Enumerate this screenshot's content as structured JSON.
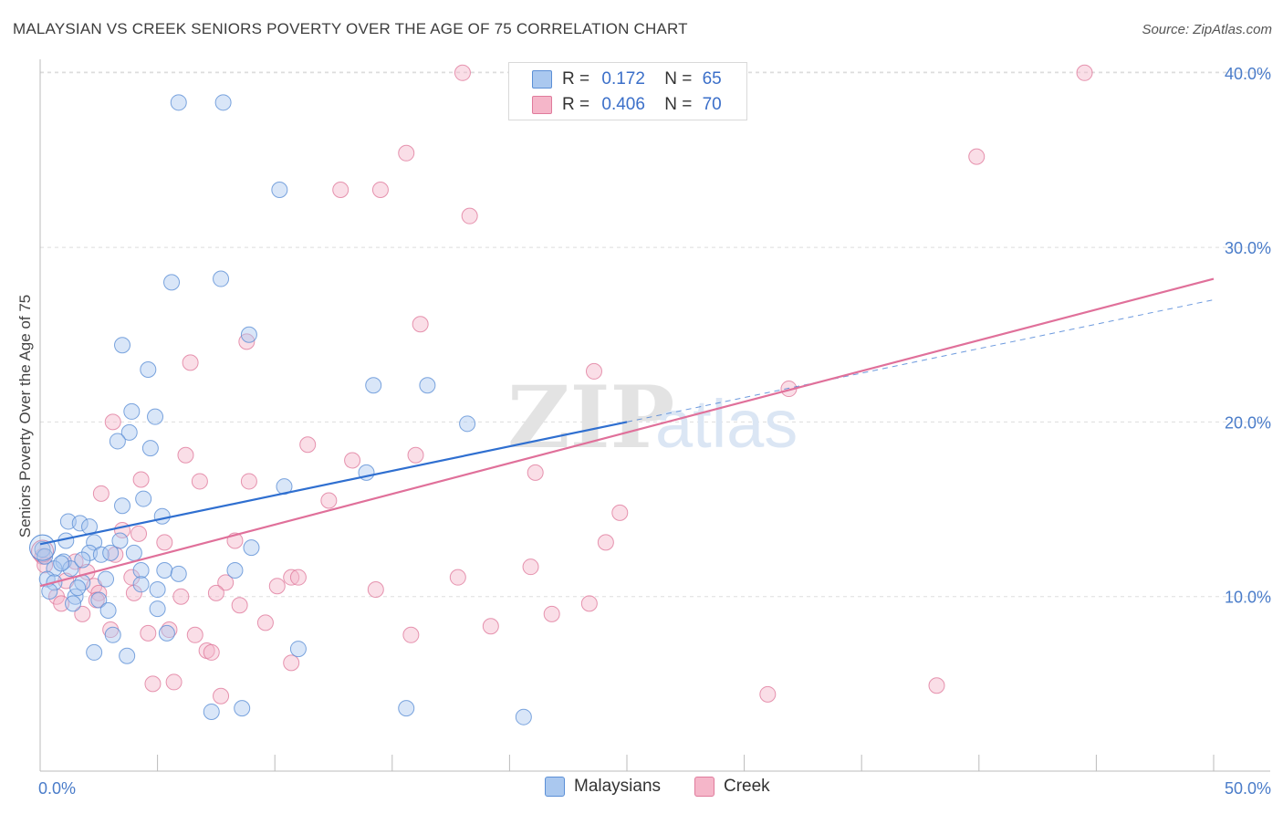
{
  "title": "MALAYSIAN VS CREEK SENIORS POVERTY OVER THE AGE OF 75 CORRELATION CHART",
  "source": "Source: ZipAtlas.com",
  "watermark": {
    "zip": "ZIP",
    "atlas": "atlas"
  },
  "stats": {
    "malaysians": {
      "r_label": "R =",
      "r_value": "0.172",
      "n_label": "N =",
      "n_value": "65"
    },
    "creek": {
      "r_label": "R =",
      "r_value": "0.406",
      "n_label": "N =",
      "n_value": "70"
    }
  },
  "legend": {
    "malaysians": "Malaysians",
    "creek": "Creek"
  },
  "colors": {
    "malaysians_fill": "#aac8ef",
    "malaysians_stroke": "#5b8fd6",
    "malaysians_line": "#2f6fd0",
    "creek_fill": "#f5b6c9",
    "creek_stroke": "#e07b9c",
    "creek_line": "#e0709a",
    "tick": "#4a7cc9",
    "grid": "#dddddd"
  },
  "chart_data": {
    "type": "scatter",
    "title": "MALAYSIAN VS CREEK SENIORS POVERTY OVER THE AGE OF 75 CORRELATION CHART",
    "xlabel": "",
    "ylabel": "Seniors Poverty Over the Age of 75",
    "xlim": [
      0,
      50
    ],
    "ylim": [
      0,
      42
    ],
    "x_tick_labels": [
      "0.0%",
      "50.0%"
    ],
    "y_ticks": [
      10,
      20,
      30,
      40
    ],
    "y_tick_labels": [
      "10.0%",
      "20.0%",
      "30.0%",
      "40.0%"
    ],
    "series": [
      {
        "name": "Malaysians",
        "r": 0.172,
        "n": 65,
        "trend": {
          "x": [
            0,
            25
          ],
          "y": [
            13.0,
            20.0
          ]
        },
        "trend_extension": {
          "x": [
            25,
            50
          ],
          "y": [
            20.0,
            27.0
          ]
        },
        "points": [
          [
            5.9,
            38.3
          ],
          [
            7.8,
            38.3
          ],
          [
            10.2,
            33.3
          ],
          [
            5.6,
            28.0
          ],
          [
            7.7,
            28.2
          ],
          [
            3.5,
            24.4
          ],
          [
            8.9,
            25.0
          ],
          [
            4.6,
            23.0
          ],
          [
            14.2,
            22.1
          ],
          [
            16.5,
            22.1
          ],
          [
            3.9,
            20.6
          ],
          [
            4.9,
            20.3
          ],
          [
            18.2,
            19.9
          ],
          [
            3.8,
            19.4
          ],
          [
            3.3,
            18.9
          ],
          [
            4.7,
            18.5
          ],
          [
            13.9,
            17.1
          ],
          [
            10.4,
            16.3
          ],
          [
            4.4,
            15.6
          ],
          [
            3.5,
            15.2
          ],
          [
            5.2,
            14.6
          ],
          [
            1.2,
            14.3
          ],
          [
            1.7,
            14.2
          ],
          [
            2.1,
            14.0
          ],
          [
            0.1,
            12.7
          ],
          [
            2.3,
            13.1
          ],
          [
            3.4,
            13.2
          ],
          [
            2.1,
            12.5
          ],
          [
            2.6,
            12.4
          ],
          [
            3.0,
            12.5
          ],
          [
            4.0,
            12.5
          ],
          [
            1.0,
            12.0
          ],
          [
            0.6,
            11.6
          ],
          [
            1.3,
            11.6
          ],
          [
            4.3,
            11.5
          ],
          [
            5.3,
            11.5
          ],
          [
            5.9,
            11.3
          ],
          [
            8.3,
            11.5
          ],
          [
            9.0,
            12.8
          ],
          [
            0.3,
            11.0
          ],
          [
            0.6,
            10.8
          ],
          [
            1.8,
            10.8
          ],
          [
            2.8,
            11.0
          ],
          [
            4.3,
            10.7
          ],
          [
            0.4,
            10.3
          ],
          [
            1.5,
            10.0
          ],
          [
            1.6,
            10.5
          ],
          [
            2.5,
            9.8
          ],
          [
            1.4,
            9.6
          ],
          [
            2.9,
            9.2
          ],
          [
            5.0,
            9.3
          ],
          [
            5.0,
            10.4
          ],
          [
            3.1,
            7.8
          ],
          [
            5.4,
            7.9
          ],
          [
            2.3,
            6.8
          ],
          [
            3.7,
            6.6
          ],
          [
            11.0,
            7.0
          ],
          [
            7.3,
            3.4
          ],
          [
            8.6,
            3.6
          ],
          [
            15.6,
            3.6
          ],
          [
            20.6,
            3.1
          ],
          [
            0.9,
            11.9
          ],
          [
            1.8,
            12.1
          ],
          [
            0.2,
            12.3
          ],
          [
            1.1,
            13.2
          ]
        ]
      },
      {
        "name": "Creek",
        "r": 0.406,
        "n": 70,
        "trend": {
          "x": [
            0,
            50
          ],
          "y": [
            10.6,
            28.2
          ]
        },
        "points": [
          [
            18.0,
            40.0
          ],
          [
            44.5,
            40.0
          ],
          [
            15.6,
            35.4
          ],
          [
            39.9,
            35.2
          ],
          [
            12.8,
            33.3
          ],
          [
            14.5,
            33.3
          ],
          [
            18.3,
            31.8
          ],
          [
            16.2,
            25.6
          ],
          [
            8.8,
            24.6
          ],
          [
            6.4,
            23.4
          ],
          [
            23.6,
            22.9
          ],
          [
            31.9,
            21.9
          ],
          [
            3.1,
            20.0
          ],
          [
            11.4,
            18.7
          ],
          [
            6.2,
            18.1
          ],
          [
            16.0,
            18.1
          ],
          [
            13.3,
            17.8
          ],
          [
            21.1,
            17.1
          ],
          [
            4.3,
            16.7
          ],
          [
            6.8,
            16.6
          ],
          [
            8.9,
            16.6
          ],
          [
            2.6,
            15.9
          ],
          [
            12.3,
            15.5
          ],
          [
            24.7,
            14.8
          ],
          [
            3.5,
            13.8
          ],
          [
            4.2,
            13.6
          ],
          [
            8.3,
            13.2
          ],
          [
            5.3,
            13.1
          ],
          [
            24.1,
            13.1
          ],
          [
            0.1,
            12.3
          ],
          [
            2.0,
            11.4
          ],
          [
            20.9,
            11.7
          ],
          [
            3.9,
            11.1
          ],
          [
            10.7,
            11.1
          ],
          [
            11.0,
            11.1
          ],
          [
            17.8,
            11.1
          ],
          [
            1.1,
            10.9
          ],
          [
            7.9,
            10.8
          ],
          [
            10.1,
            10.6
          ],
          [
            2.3,
            10.6
          ],
          [
            0.7,
            10.0
          ],
          [
            2.5,
            10.2
          ],
          [
            4.0,
            10.2
          ],
          [
            6.0,
            10.0
          ],
          [
            7.5,
            10.2
          ],
          [
            0.9,
            9.6
          ],
          [
            1.8,
            9.0
          ],
          [
            8.5,
            9.5
          ],
          [
            14.3,
            10.4
          ],
          [
            23.4,
            9.6
          ],
          [
            21.8,
            9.0
          ],
          [
            9.6,
            8.5
          ],
          [
            19.2,
            8.3
          ],
          [
            3.0,
            8.1
          ],
          [
            4.6,
            7.9
          ],
          [
            5.5,
            8.1
          ],
          [
            6.6,
            7.8
          ],
          [
            15.8,
            7.8
          ],
          [
            7.1,
            6.9
          ],
          [
            7.3,
            6.8
          ],
          [
            10.7,
            6.2
          ],
          [
            4.8,
            5.0
          ],
          [
            5.7,
            5.1
          ],
          [
            7.7,
            4.3
          ],
          [
            31.0,
            4.4
          ],
          [
            38.2,
            4.9
          ],
          [
            0.2,
            11.8
          ],
          [
            1.5,
            12.0
          ],
          [
            3.2,
            12.4
          ],
          [
            2.4,
            9.8
          ]
        ]
      }
    ]
  }
}
